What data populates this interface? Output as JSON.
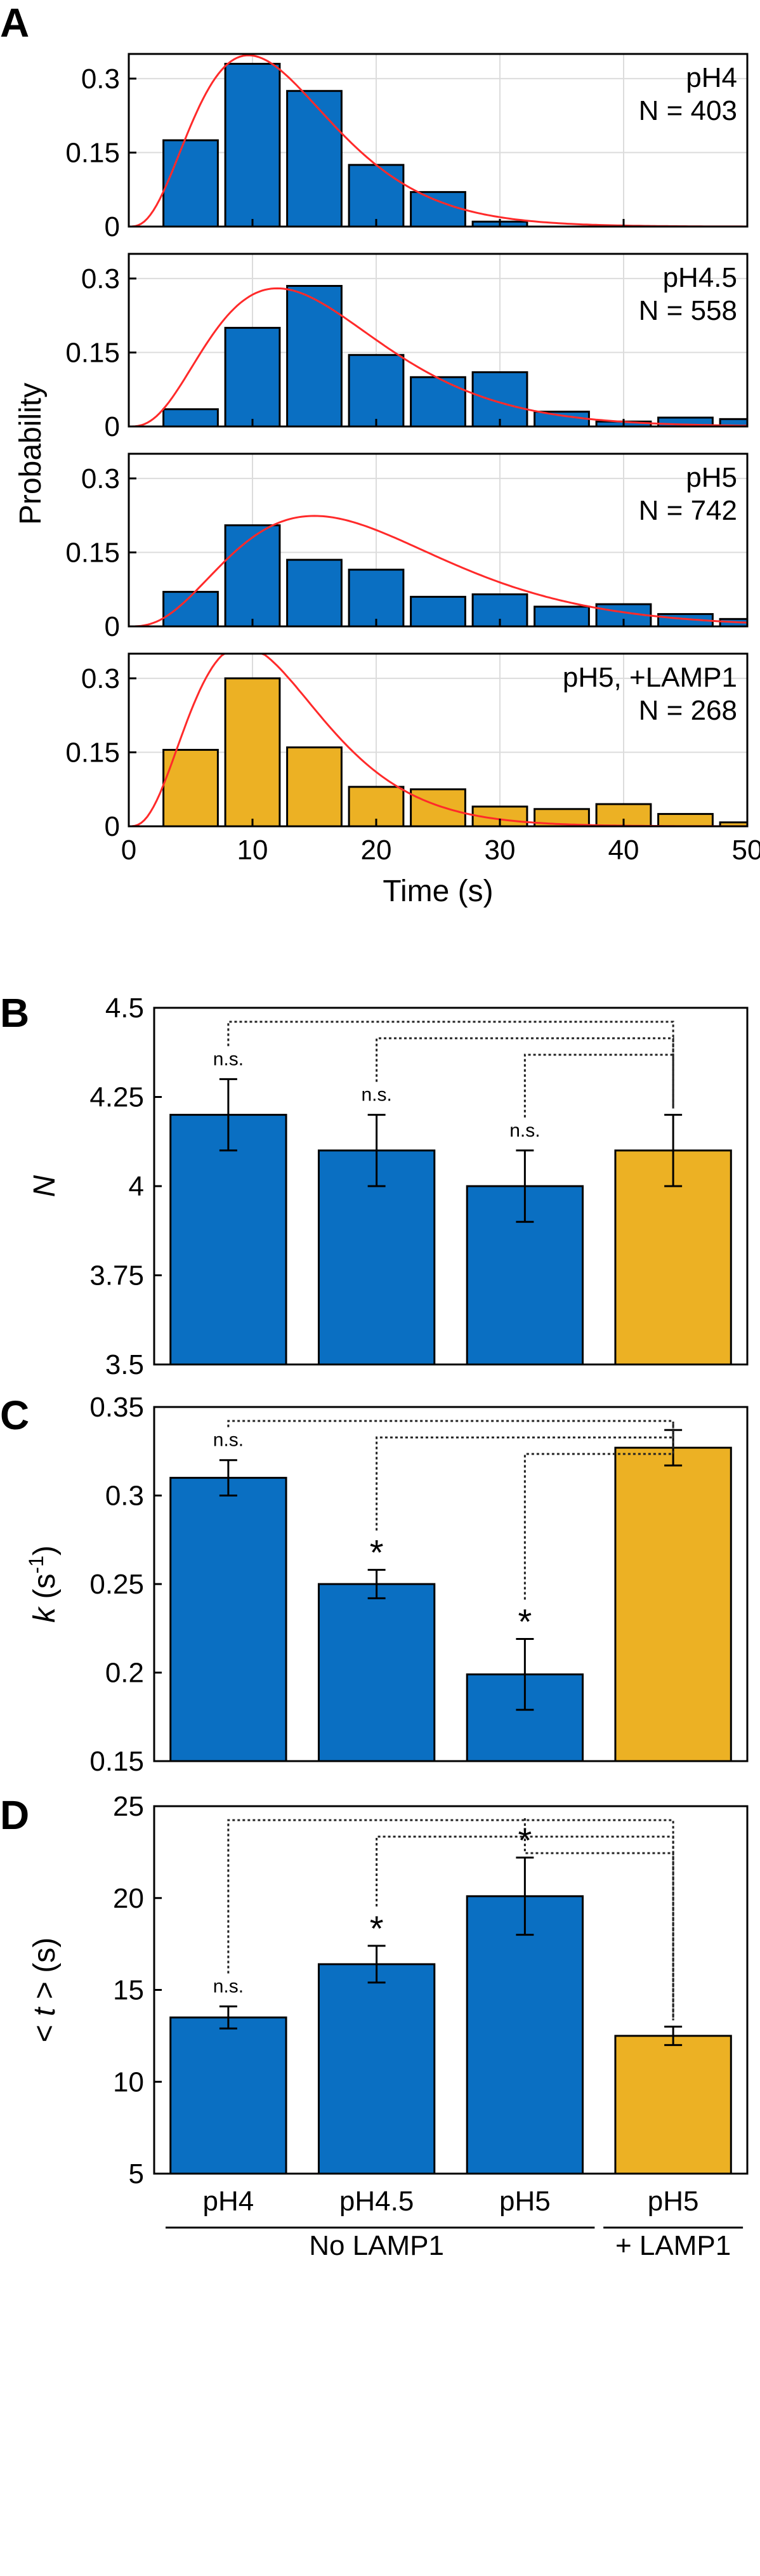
{
  "figure": {
    "panel_letters": [
      "A",
      "B",
      "C",
      "D"
    ],
    "colors": {
      "blue": "#0a6fc2",
      "yellow": "#ecb124",
      "fit": "#ff2a2a",
      "grid": "#dcdcdc"
    }
  },
  "chart_data": [
    {
      "panel": "A",
      "type": "histogram-stack",
      "ylabel": "Probability",
      "xlabel": "Time (s)",
      "xlim": [
        0,
        50
      ],
      "xticks": [
        "0",
        "10",
        "20",
        "30",
        "40",
        "50"
      ],
      "bin_centers": [
        5,
        10,
        15,
        20,
        25,
        30,
        35,
        40,
        45,
        50
      ],
      "subplots": [
        {
          "name": "pH4",
          "annotation": [
            "pH4",
            "N = 403"
          ],
          "color": "blue",
          "ylim": [
            0,
            0.35
          ],
          "yticks": [
            "0",
            "0.15",
            "0.3"
          ],
          "values": [
            0.175,
            0.33,
            0.275,
            0.125,
            0.07,
            0.01,
            0.0,
            0.0,
            0.0,
            0.0
          ],
          "fit": {
            "k": 0.31,
            "N": 4.2
          }
        },
        {
          "name": "pH4.5",
          "annotation": [
            "pH4.5",
            "N = 558"
          ],
          "color": "blue",
          "ylim": [
            0,
            0.35
          ],
          "yticks": [
            "0",
            "0.15",
            "0.3"
          ],
          "values": [
            0.035,
            0.2,
            0.285,
            0.145,
            0.1,
            0.11,
            0.03,
            0.01,
            0.018,
            0.015
          ],
          "fit": {
            "k": 0.25,
            "N": 4.1
          }
        },
        {
          "name": "pH5",
          "annotation": [
            "pH5",
            "N = 742"
          ],
          "color": "blue",
          "ylim": [
            0,
            0.35
          ],
          "yticks": [
            "0",
            "0.15",
            "0.3"
          ],
          "values": [
            0.07,
            0.205,
            0.135,
            0.115,
            0.06,
            0.065,
            0.04,
            0.045,
            0.025,
            0.015
          ],
          "fit": {
            "k": 0.2,
            "N": 4.0
          }
        },
        {
          "name": "pH5, +LAMP1",
          "annotation": [
            "pH5, +LAMP1",
            "N = 268"
          ],
          "color": "yellow",
          "ylim": [
            0,
            0.35
          ],
          "yticks": [
            "0",
            "0.15",
            "0.3"
          ],
          "values": [
            0.155,
            0.3,
            0.16,
            0.08,
            0.075,
            0.04,
            0.035,
            0.045,
            0.025,
            0.008
          ],
          "fit": {
            "k": 0.327,
            "N": 4.1
          }
        }
      ]
    },
    {
      "panel": "B",
      "type": "bar",
      "ylabel": "N",
      "ylim": [
        3.5,
        4.5
      ],
      "yticks": [
        "3.5",
        "3.75",
        "4",
        "4.25",
        "4.5"
      ],
      "categories": [
        "pH4",
        "pH4.5",
        "pH5",
        "pH5"
      ],
      "colors": [
        "blue",
        "blue",
        "blue",
        "yellow"
      ],
      "values": [
        4.2,
        4.1,
        4.0,
        4.1
      ],
      "errors": [
        0.1,
        0.1,
        0.1,
        0.1
      ],
      "significance": [
        "n.s.",
        "n.s.",
        "n.s."
      ]
    },
    {
      "panel": "C",
      "type": "bar",
      "ylabel": "k (s-1)",
      "ylabel_parts": {
        "var": "k",
        "open": " (s",
        "sup": "-1",
        "close": ")"
      },
      "ylim": [
        0.15,
        0.35
      ],
      "yticks": [
        "0.15",
        "0.2",
        "0.25",
        "0.3",
        "0.35"
      ],
      "categories": [
        "pH4",
        "pH4.5",
        "pH5",
        "pH5"
      ],
      "colors": [
        "blue",
        "blue",
        "blue",
        "yellow"
      ],
      "values": [
        0.31,
        0.25,
        0.199,
        0.327
      ],
      "errors": [
        0.01,
        0.008,
        0.02,
        0.01
      ],
      "significance": [
        "n.s.",
        "*",
        "*"
      ]
    },
    {
      "panel": "D",
      "type": "bar",
      "ylabel": "< t > (s)",
      "ylabel_parts": {
        "open": "< ",
        "var": "t",
        "close": " > (s)"
      },
      "ylim": [
        5,
        25
      ],
      "yticks": [
        "5",
        "10",
        "15",
        "20",
        "25"
      ],
      "categories": [
        "pH4",
        "pH4.5",
        "pH5",
        "pH5"
      ],
      "colors": [
        "blue",
        "blue",
        "blue",
        "yellow"
      ],
      "values": [
        13.5,
        16.4,
        20.1,
        12.5
      ],
      "errors": [
        0.6,
        1.0,
        2.1,
        0.5
      ],
      "significance": [
        "n.s.",
        "*",
        "*"
      ],
      "group_labels": [
        "No LAMP1",
        "+ LAMP1"
      ]
    }
  ]
}
